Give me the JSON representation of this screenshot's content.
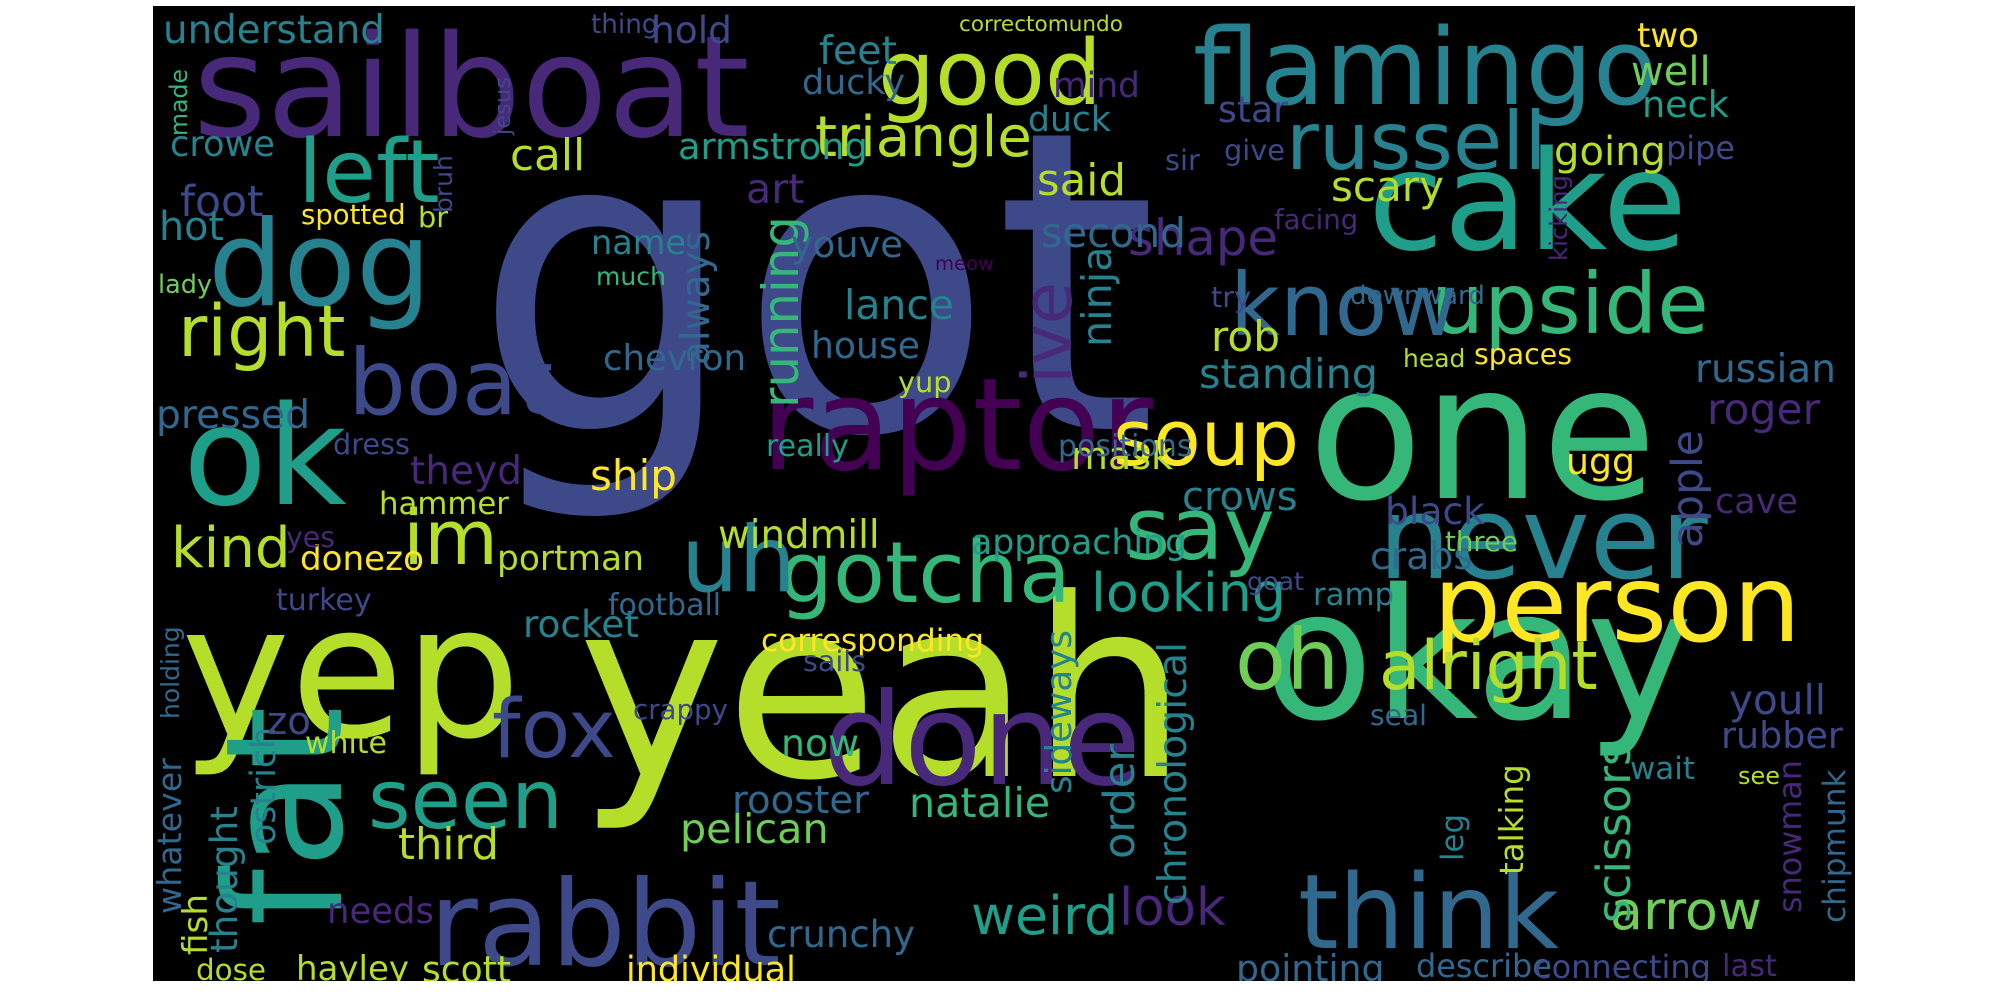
{
  "palette": {
    "dark_purple": "#440154",
    "indigo": "#482878",
    "slate_blue": "#3e4989",
    "blue": "#31688e",
    "teal": "#26828e",
    "teal_green": "#1f9e89",
    "green": "#35b779",
    "light_green": "#6ece58",
    "lime": "#b5de2b",
    "yellow": "#fde725"
  },
  "words": [
    {
      "text": "got",
      "color": "#3e4989"
    },
    {
      "text": "yeah",
      "color": "#b5de2b"
    },
    {
      "text": "yep",
      "color": "#b5de2b"
    },
    {
      "text": "okay",
      "color": "#35b779"
    },
    {
      "text": "one",
      "color": "#35b779"
    },
    {
      "text": "sailboat",
      "color": "#482878"
    },
    {
      "text": "cake",
      "color": "#1f9e89"
    },
    {
      "text": "ok",
      "color": "#1f9e89"
    },
    {
      "text": "done",
      "color": "#482878"
    },
    {
      "text": "raptor",
      "color": "#440154"
    },
    {
      "text": "flamingo",
      "color": "#26828e"
    },
    {
      "text": "dog",
      "color": "#26828e"
    },
    {
      "text": "fat",
      "color": "#1f9e89"
    },
    {
      "text": "rabbit",
      "color": "#3e4989"
    },
    {
      "text": "never",
      "color": "#26828e"
    },
    {
      "text": "person",
      "color": "#fde725"
    },
    {
      "text": "think",
      "color": "#31688e"
    },
    {
      "text": "good",
      "color": "#b5de2b"
    },
    {
      "text": "upside",
      "color": "#35b779"
    },
    {
      "text": "gotcha",
      "color": "#35b779"
    },
    {
      "text": "russell",
      "color": "#26828e"
    },
    {
      "text": "uh",
      "color": "#26828e"
    },
    {
      "text": "know",
      "color": "#31688e"
    },
    {
      "text": "say",
      "color": "#35b779"
    },
    {
      "text": "fox",
      "color": "#3e4989"
    },
    {
      "text": "seen",
      "color": "#1f9e89"
    },
    {
      "text": "left",
      "color": "#1f9e89"
    },
    {
      "text": "boat",
      "color": "#3e4989"
    },
    {
      "text": "im",
      "color": "#b5de2b"
    },
    {
      "text": "oh",
      "color": "#6ece58"
    },
    {
      "text": "soup",
      "color": "#fde725"
    },
    {
      "text": "right",
      "color": "#b5de2b"
    },
    {
      "text": "ive",
      "color": "#482878"
    },
    {
      "text": "alright",
      "color": "#b5de2b"
    },
    {
      "text": "kind",
      "color": "#b5de2b"
    },
    {
      "text": "arrow",
      "color": "#6ece58"
    },
    {
      "text": "weird",
      "color": "#1f9e89"
    },
    {
      "text": "look",
      "color": "#482878"
    },
    {
      "text": "shape",
      "color": "#482878"
    },
    {
      "text": "triangle",
      "color": "#b5de2b"
    },
    {
      "text": "running",
      "color": "#35b779"
    },
    {
      "text": "looking",
      "color": "#1f9e89"
    },
    {
      "text": "scissors",
      "color": "#35b779"
    },
    {
      "text": "chronological",
      "color": "#26828e"
    },
    {
      "text": "ugg",
      "color": "#fde725"
    },
    {
      "text": "ship",
      "color": "#fde725"
    },
    {
      "text": "third",
      "color": "#b5de2b"
    },
    {
      "text": "pelican",
      "color": "#6ece58"
    },
    {
      "text": "natalie",
      "color": "#35b779"
    },
    {
      "text": "portman",
      "color": "#b5de2b"
    },
    {
      "text": "donezo",
      "color": "#fde725"
    },
    {
      "text": "crunchy",
      "color": "#31688e"
    },
    {
      "text": "rooster",
      "color": "#31688e"
    },
    {
      "text": "chevron",
      "color": "#31688e"
    },
    {
      "text": "house",
      "color": "#31688e"
    },
    {
      "text": "lance",
      "color": "#26828e"
    },
    {
      "text": "youve",
      "color": "#31688e"
    },
    {
      "text": "name",
      "color": "#26828e"
    },
    {
      "text": "armstrong",
      "color": "#1f9e89"
    },
    {
      "text": "feet",
      "color": "#26828e"
    },
    {
      "text": "ducky",
      "color": "#31688e"
    },
    {
      "text": "hold",
      "color": "#3e4989"
    },
    {
      "text": "understand",
      "color": "#26828e"
    },
    {
      "text": "crowe",
      "color": "#26828e"
    },
    {
      "text": "foot",
      "color": "#3e4989"
    },
    {
      "text": "hot",
      "color": "#26828e"
    },
    {
      "text": "pressed",
      "color": "#31688e"
    },
    {
      "text": "hammer",
      "color": "#b5de2b"
    },
    {
      "text": "theyd",
      "color": "#482878"
    },
    {
      "text": "rocket",
      "color": "#26828e"
    },
    {
      "text": "thought",
      "color": "#26828e"
    },
    {
      "text": "ostrich",
      "color": "#26828e"
    },
    {
      "text": "zo",
      "color": "#3e4989"
    },
    {
      "text": "needs",
      "color": "#482878"
    },
    {
      "text": "hayley",
      "color": "#b5de2b"
    },
    {
      "text": "scott",
      "color": "#b5de2b"
    },
    {
      "text": "individual",
      "color": "#fde725"
    },
    {
      "text": "whatever",
      "color": "#31688e"
    },
    {
      "text": "fish",
      "color": "#b5de2b"
    },
    {
      "text": "dose",
      "color": "#b5de2b"
    },
    {
      "text": "windmill",
      "color": "#b5de2b"
    },
    {
      "text": "approaching",
      "color": "#1f9e89"
    },
    {
      "text": "crows",
      "color": "#26828e"
    },
    {
      "text": "crabs",
      "color": "#31688e"
    },
    {
      "text": "black",
      "color": "#3e4989"
    },
    {
      "text": "ramp",
      "color": "#26828e"
    },
    {
      "text": "sideways",
      "color": "#26828e"
    },
    {
      "text": "order",
      "color": "#26828e"
    },
    {
      "text": "now",
      "color": "#35b779"
    },
    {
      "text": "mask",
      "color": "#b5de2b"
    },
    {
      "text": "ninja",
      "color": "#26828e"
    },
    {
      "text": "always",
      "color": "#31688e"
    },
    {
      "text": "rob",
      "color": "#b5de2b"
    },
    {
      "text": "standing",
      "color": "#26828e"
    },
    {
      "text": "scary",
      "color": "#b5de2b"
    },
    {
      "text": "second",
      "color": "#31688e"
    },
    {
      "text": "said",
      "color": "#b5de2b"
    },
    {
      "text": "art",
      "color": "#482878"
    },
    {
      "text": "call",
      "color": "#b5de2b"
    },
    {
      "text": "duck",
      "color": "#26828e"
    },
    {
      "text": "mind",
      "color": "#482878"
    },
    {
      "text": "star",
      "color": "#3e4989"
    },
    {
      "text": "two",
      "color": "#fde725"
    },
    {
      "text": "well",
      "color": "#6ece58"
    },
    {
      "text": "neck",
      "color": "#1f9e89"
    },
    {
      "text": "going",
      "color": "#b5de2b"
    },
    {
      "text": "pipe",
      "color": "#3e4989"
    },
    {
      "text": "russian",
      "color": "#31688e"
    },
    {
      "text": "roger",
      "color": "#482878"
    },
    {
      "text": "cave",
      "color": "#482878"
    },
    {
      "text": "apple",
      "color": "#3e4989"
    },
    {
      "text": "youll",
      "color": "#3e4989"
    },
    {
      "text": "rubber",
      "color": "#3e4989"
    },
    {
      "text": "snowman",
      "color": "#482878"
    },
    {
      "text": "chipmunk",
      "color": "#31688e"
    },
    {
      "text": "pointing",
      "color": "#31688e"
    },
    {
      "text": "describe",
      "color": "#31688e"
    },
    {
      "text": "connecting",
      "color": "#3e4989"
    },
    {
      "text": "last",
      "color": "#482878"
    },
    {
      "text": "talking",
      "color": "#b5de2b"
    },
    {
      "text": "leg",
      "color": "#26828e"
    },
    {
      "text": "wait",
      "color": "#26828e"
    },
    {
      "text": "see",
      "color": "#b5de2b"
    },
    {
      "text": "seal",
      "color": "#31688e"
    },
    {
      "text": "three",
      "color": "#6ece58"
    },
    {
      "text": "goat",
      "color": "#3e4989"
    },
    {
      "text": "corresponding",
      "color": "#fde725"
    },
    {
      "text": "sails",
      "color": "#3e4989"
    },
    {
      "text": "football",
      "color": "#31688e"
    },
    {
      "text": "turkey",
      "color": "#3e4989"
    },
    {
      "text": "yes",
      "color": "#482878"
    },
    {
      "text": "dress",
      "color": "#3e4989"
    },
    {
      "text": "really",
      "color": "#1f9e89"
    },
    {
      "text": "yup",
      "color": "#b5de2b"
    },
    {
      "text": "much",
      "color": "#35b779"
    },
    {
      "text": "meow",
      "color": "#440154"
    },
    {
      "text": "positions",
      "color": "#31688e"
    },
    {
      "text": "crappy",
      "color": "#3e4989"
    },
    {
      "text": "white",
      "color": "#b5de2b"
    },
    {
      "text": "holding",
      "color": "#31688e"
    },
    {
      "text": "lady",
      "color": "#6ece58"
    },
    {
      "text": "spotted",
      "color": "#fde725"
    },
    {
      "text": "br",
      "color": "#b5de2b"
    },
    {
      "text": "bruh",
      "color": "#3e4989"
    },
    {
      "text": "jesus",
      "color": "#3e4989"
    },
    {
      "text": "made",
      "color": "#35b779"
    },
    {
      "text": "thing",
      "color": "#3e4989"
    },
    {
      "text": "correctomundo",
      "color": "#b5de2b"
    },
    {
      "text": "sir",
      "color": "#3e4989"
    },
    {
      "text": "give",
      "color": "#3e4989"
    },
    {
      "text": "facing",
      "color": "#482878"
    },
    {
      "text": "kicking",
      "color": "#482878"
    },
    {
      "text": "try",
      "color": "#3e4989"
    },
    {
      "text": "downward",
      "color": "#31688e"
    },
    {
      "text": "head",
      "color": "#b5de2b"
    },
    {
      "text": "spaces",
      "color": "#fde725"
    }
  ]
}
